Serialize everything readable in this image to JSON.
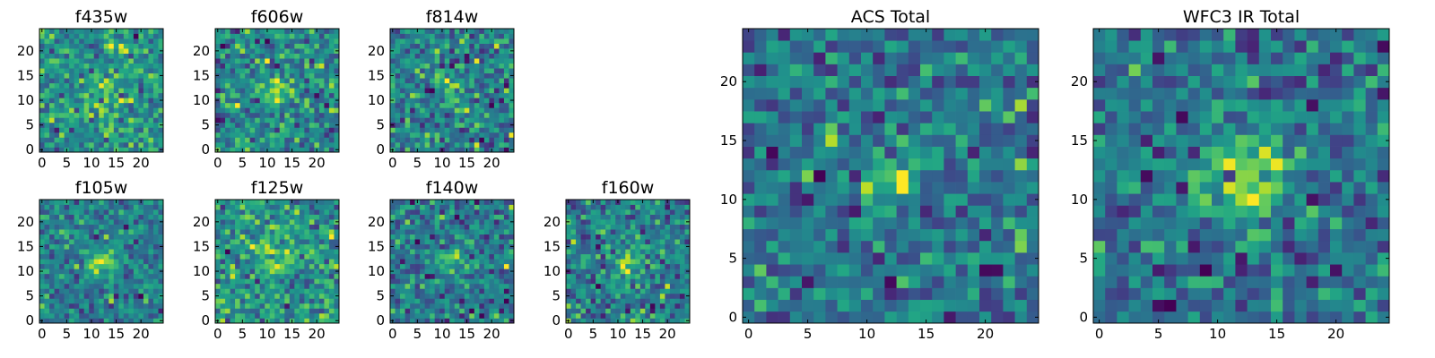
{
  "chart_data": [
    {
      "type": "heatmap",
      "title": "f435w",
      "size": 25,
      "xticks": [
        0,
        5,
        10,
        15,
        20
      ],
      "yticks": [
        0,
        5,
        10,
        15,
        20
      ],
      "colormap": "viridis",
      "source_spread": 3.0,
      "source_strength": 0.35,
      "noise": 0.9,
      "seed": 11
    },
    {
      "type": "heatmap",
      "title": "f606w",
      "size": 25,
      "xticks": [
        0,
        5,
        10,
        15,
        20
      ],
      "yticks": [
        0,
        5,
        10,
        15,
        20
      ],
      "colormap": "viridis",
      "source_spread": 1.6,
      "source_strength": 0.75,
      "noise": 0.85,
      "seed": 23
    },
    {
      "type": "heatmap",
      "title": "f814w",
      "size": 25,
      "xticks": [
        0,
        5,
        10,
        15,
        20
      ],
      "yticks": [
        0,
        5,
        10,
        15,
        20
      ],
      "colormap": "viridis",
      "source_spread": 1.6,
      "source_strength": 0.55,
      "noise": 0.9,
      "seed": 37
    },
    {
      "type": "heatmap",
      "title": "f105w",
      "size": 25,
      "xticks": [
        0,
        5,
        10,
        15,
        20
      ],
      "yticks": [
        0,
        5,
        10,
        15,
        20
      ],
      "colormap": "viridis",
      "source_spread": 2.2,
      "source_strength": 0.7,
      "noise": 0.55,
      "seed": 41
    },
    {
      "type": "heatmap",
      "title": "f125w",
      "size": 25,
      "xticks": [
        0,
        5,
        10,
        15,
        20
      ],
      "yticks": [
        0,
        5,
        10,
        15,
        20
      ],
      "colormap": "viridis",
      "source_spread": 2.2,
      "source_strength": 0.5,
      "noise": 0.6,
      "seed": 53
    },
    {
      "type": "heatmap",
      "title": "f140w",
      "size": 25,
      "xticks": [
        0,
        5,
        10,
        15,
        20
      ],
      "yticks": [
        0,
        5,
        10,
        15,
        20
      ],
      "colormap": "viridis",
      "source_spread": 2.2,
      "source_strength": 0.5,
      "noise": 0.6,
      "seed": 67
    },
    {
      "type": "heatmap",
      "title": "f160w",
      "size": 25,
      "xticks": [
        0,
        5,
        10,
        15,
        20
      ],
      "yticks": [
        0,
        5,
        10,
        15,
        20
      ],
      "colormap": "viridis",
      "source_spread": 2.2,
      "source_strength": 0.65,
      "noise": 0.6,
      "seed": 79
    },
    {
      "type": "heatmap",
      "title": "ACS Total",
      "size": 25,
      "xticks": [
        0,
        5,
        10,
        15,
        20
      ],
      "yticks": [
        0,
        5,
        10,
        15,
        20
      ],
      "colormap": "viridis",
      "source_spread": 1.8,
      "source_strength": 0.85,
      "noise": 0.75,
      "seed": 97
    },
    {
      "type": "heatmap",
      "title": "WFC3 IR Total",
      "size": 25,
      "xticks": [
        0,
        5,
        10,
        15,
        20
      ],
      "yticks": [
        0,
        5,
        10,
        15,
        20
      ],
      "colormap": "viridis",
      "source_spread": 2.6,
      "source_strength": 0.8,
      "noise": 0.6,
      "seed": 113
    }
  ]
}
